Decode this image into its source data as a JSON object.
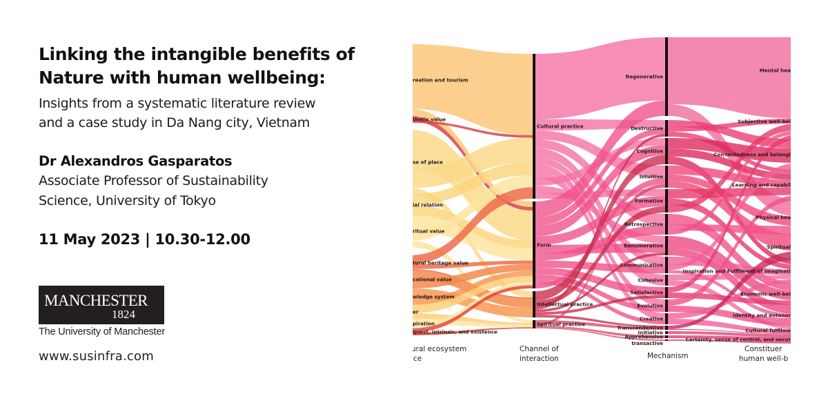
{
  "event": {
    "title_line1": "Linking the intangible benefits of",
    "title_line2": "Nature with human wellbeing:",
    "subtitle_line1": "Insights from a systematic literature review",
    "subtitle_line2": "and a case study in Da Nang city, Vietnam",
    "speaker_name": "Dr Alexandros Gasparatos",
    "speaker_role_line1": "Associate Professor of Sustainability",
    "speaker_role_line2": "Science, University of Tokyo",
    "date_time": "11 May 2023 | 10.30-12.00",
    "website": "www.susinfra.com"
  },
  "logo": {
    "wordmark": "MANCHESTER",
    "year": "1824",
    "institution": "The University of Manchester",
    "background": "#231f20"
  },
  "diagram": {
    "type": "sankey",
    "columns": [
      {
        "axis_label_line1": "ural ecosystem",
        "axis_label_line2": "ice",
        "nodes": [
          {
            "label": "reation and tourism",
            "color": "#fbc77a"
          },
          {
            "label": "thetic value",
            "color": "#d9434a"
          },
          {
            "label": "se of place",
            "color": "#fcd98a"
          },
          {
            "label": "ial relation",
            "color": "#fbd67f"
          },
          {
            "label": "ritual value",
            "color": "#fde4a0"
          },
          {
            "label": "tural heritage value",
            "color": "#ef6d4a"
          },
          {
            "label": "cational value",
            "color": "#f58a4e"
          },
          {
            "label": "wledge system",
            "color": "#f79a55"
          },
          {
            "label": "er",
            "color": "#fcd07c"
          },
          {
            "label": "piration",
            "color": "#fde6a6"
          },
          {
            "label": "quest, intrinsic, and existence",
            "color": "#e24a3b"
          }
        ]
      },
      {
        "axis_label_line1": "Channel of",
        "axis_label_line2": "interaction",
        "nodes": [
          {
            "label": "Cultural practice",
            "color": "#f472a6"
          },
          {
            "label": "Form",
            "color": "#f0528a"
          },
          {
            "label": "Intellectual practice",
            "color": "#c9304e"
          },
          {
            "label": "Spiritual practice",
            "color": "#d84a6a"
          }
        ]
      },
      {
        "axis_label_line1": "Mechanism",
        "nodes": [
          {
            "label": "Regenerative",
            "color": "#f06a9c"
          },
          {
            "label": "Destructive",
            "color": "#ea3f75"
          },
          {
            "label": "Cognitive",
            "color": "#dd2c5c"
          },
          {
            "label": "Intuitive",
            "color": "#ef4a7d"
          },
          {
            "label": "Formative",
            "color": "#e6396c"
          },
          {
            "label": "Retrospective",
            "color": "#f0528a"
          },
          {
            "label": "Renumerative",
            "color": "#ec4a82"
          },
          {
            "label": "Communicative",
            "color": "#f0609a"
          },
          {
            "label": "Cohesive",
            "color": "#f26ea2"
          },
          {
            "label": "Satisfactive",
            "color": "#e83c72"
          },
          {
            "label": "Evolutive",
            "color": "#ef5388"
          },
          {
            "label": "Creative",
            "color": "#f0609a"
          },
          {
            "label": "Transcendentive",
            "color": "#c8285a"
          },
          {
            "label": "Initiative",
            "color": "#e04070"
          },
          {
            "label": "Apprehensive",
            "color": "#e04070"
          },
          {
            "label": "transactive",
            "color": "#e04070"
          }
        ]
      },
      {
        "axis_label_line1": "Constituer",
        "axis_label_line2": "human well-b",
        "nodes": [
          {
            "label": "Mental hea",
            "color": "#3aa7a3"
          },
          {
            "label": "Subjective well-bei",
            "color": "#a6d98c"
          },
          {
            "label": "Connectedness and belongi",
            "color": "#f1f3a0"
          },
          {
            "label": "Learning and capabil",
            "color": "#7ccaa0"
          },
          {
            "label": "Physical hea",
            "color": "#4aa8a6"
          },
          {
            "label": "Spiritual",
            "color": "#a9dc9b"
          },
          {
            "label": "Inspiration and Fulfilment of imaginati",
            "color": "#e8f2a4"
          },
          {
            "label": "Economic well-bei",
            "color": "#3c8fb8"
          },
          {
            "label": "Identity and autonor",
            "color": "#8fd0a4"
          },
          {
            "label": "Cultural fulfilme",
            "color": "#d7ec9c"
          },
          {
            "label": "Certainty, sense of control, and secur",
            "color": "#f4f0b0"
          }
        ]
      }
    ],
    "bar_color": "#111111"
  }
}
